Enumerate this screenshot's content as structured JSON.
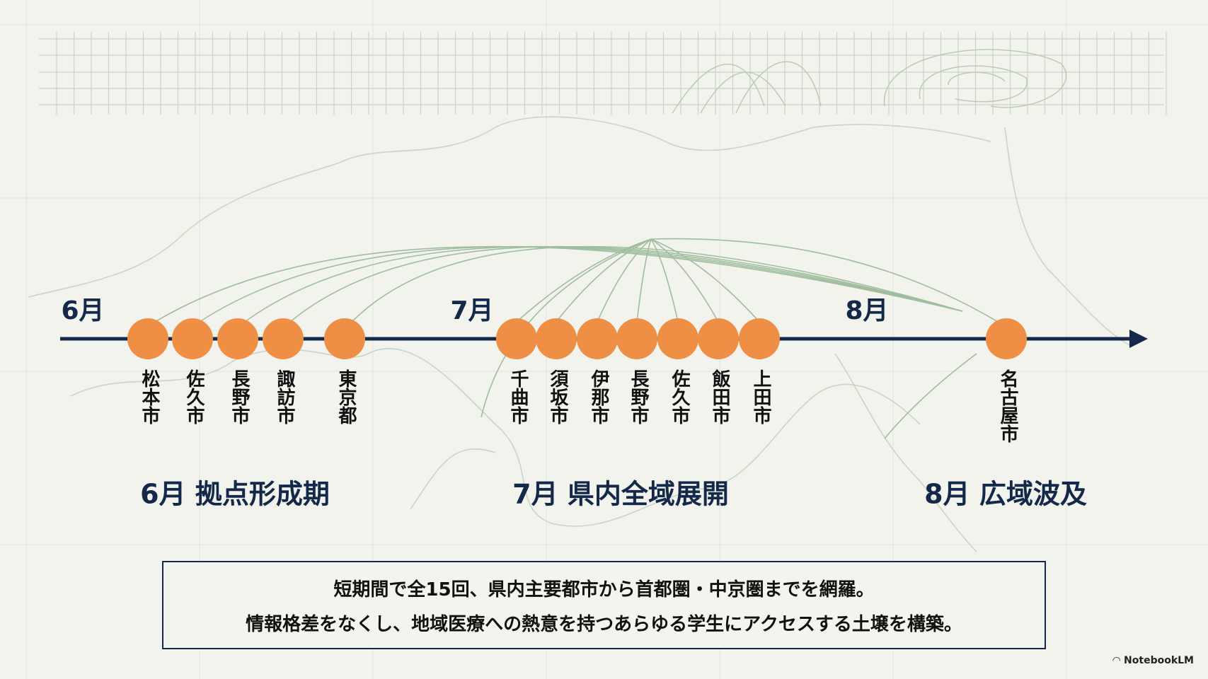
{
  "colors": {
    "accent": "#ef8f45",
    "timeline": "#14294a",
    "map": "#8fb092",
    "background": "#f3f3ed"
  },
  "months": [
    "6月",
    "7月",
    "8月"
  ],
  "cities": [
    "松本市",
    "佐久市",
    "長野市",
    "諏訪市",
    "東京都",
    "千曲市",
    "須坂市",
    "伊那市",
    "長野市",
    "佐久市",
    "飯田市",
    "上田市",
    "名古屋市"
  ],
  "phases": [
    "6月 拠点形成期",
    "7月 県内全域展開",
    "8月 広域波及"
  ],
  "summary": [
    "短期間で全15回、県内主要都市から首都圏・中京圏までを網羅。",
    "情報格差をなくし、地域医療への熱意を持つあらゆる学生にアクセスする土壌を構築。"
  ],
  "brand": {
    "label": "NotebookLM",
    "icon": "notebooklm-logo-icon"
  }
}
